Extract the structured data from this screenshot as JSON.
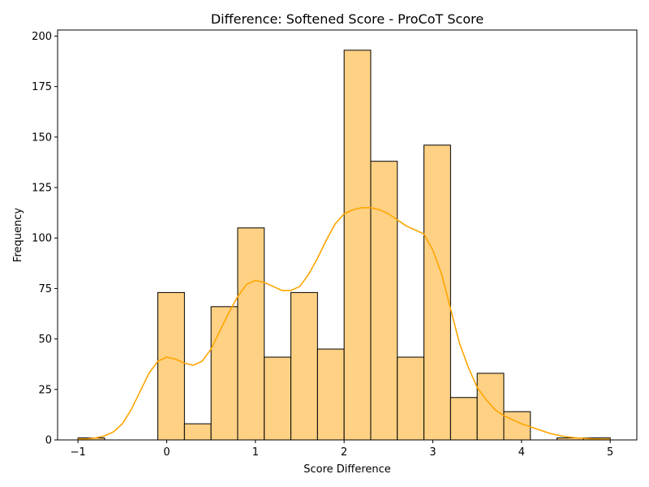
{
  "chart_data": {
    "type": "bar",
    "title": "Difference: Softened Score - ProCoT Score",
    "xlabel": "Score Difference",
    "ylabel": "Frequency",
    "xlim": [
      -1.23,
      5.3
    ],
    "ylim": [
      0,
      203
    ],
    "xticks": [
      -1,
      0,
      1,
      2,
      3,
      4,
      5
    ],
    "xtick_labels": [
      "−1",
      "0",
      "1",
      "2",
      "3",
      "4",
      "5"
    ],
    "yticks": [
      0,
      25,
      50,
      75,
      100,
      125,
      150,
      175,
      200
    ],
    "ytick_labels": [
      "0",
      "25",
      "50",
      "75",
      "100",
      "125",
      "150",
      "175",
      "200"
    ],
    "bins": [
      {
        "x0": -1.0,
        "x1": -0.7,
        "count": 1
      },
      {
        "x0": -0.7,
        "x1": -0.4,
        "count": 0
      },
      {
        "x0": -0.4,
        "x1": -0.1,
        "count": 0
      },
      {
        "x0": -0.1,
        "x1": 0.2,
        "count": 73
      },
      {
        "x0": 0.2,
        "x1": 0.5,
        "count": 8
      },
      {
        "x0": 0.5,
        "x1": 0.8,
        "count": 66
      },
      {
        "x0": 0.8,
        "x1": 1.1,
        "count": 105
      },
      {
        "x0": 1.1,
        "x1": 1.4,
        "count": 41
      },
      {
        "x0": 1.4,
        "x1": 1.7,
        "count": 73
      },
      {
        "x0": 1.7,
        "x1": 2.0,
        "count": 45
      },
      {
        "x0": 2.0,
        "x1": 2.3,
        "count": 193
      },
      {
        "x0": 2.3,
        "x1": 2.6,
        "count": 138
      },
      {
        "x0": 2.6,
        "x1": 2.9,
        "count": 41
      },
      {
        "x0": 2.9,
        "x1": 3.2,
        "count": 146
      },
      {
        "x0": 3.2,
        "x1": 3.5,
        "count": 21
      },
      {
        "x0": 3.5,
        "x1": 3.8,
        "count": 33
      },
      {
        "x0": 3.8,
        "x1": 4.1,
        "count": 14
      },
      {
        "x0": 4.1,
        "x1": 4.4,
        "count": 0
      },
      {
        "x0": 4.4,
        "x1": 4.7,
        "count": 1
      },
      {
        "x0": 4.7,
        "x1": 5.0,
        "count": 1
      }
    ],
    "kde": {
      "x": [
        -1.0,
        -0.9,
        -0.8,
        -0.7,
        -0.6,
        -0.5,
        -0.4,
        -0.3,
        -0.2,
        -0.1,
        0.0,
        0.1,
        0.2,
        0.3,
        0.4,
        0.5,
        0.6,
        0.7,
        0.8,
        0.9,
        1.0,
        1.1,
        1.2,
        1.3,
        1.4,
        1.5,
        1.6,
        1.7,
        1.8,
        1.9,
        2.0,
        2.1,
        2.2,
        2.3,
        2.4,
        2.5,
        2.6,
        2.7,
        2.8,
        2.9,
        3.0,
        3.1,
        3.2,
        3.3,
        3.4,
        3.5,
        3.6,
        3.7,
        3.8,
        3.9,
        4.0,
        4.1,
        4.2,
        4.3,
        4.4,
        4.5,
        4.6,
        4.7,
        4.8,
        4.9,
        5.0
      ],
      "y": [
        0.3,
        0.5,
        1.0,
        2.0,
        4.0,
        8.0,
        15.0,
        24.0,
        33.0,
        39.0,
        41.0,
        40.0,
        38.0,
        37.0,
        39.0,
        45.0,
        54.0,
        63.0,
        71.0,
        77.0,
        79.0,
        78.0,
        76.0,
        74.0,
        74.0,
        76.0,
        82.0,
        90.0,
        99.0,
        107.0,
        112.0,
        114.0,
        115.0,
        115.0,
        114.0,
        112.0,
        109.0,
        106.0,
        104.0,
        102.0,
        94.0,
        82.0,
        65.0,
        48.0,
        36.0,
        26.0,
        20.0,
        15.0,
        12.0,
        10.0,
        8.0,
        6.5,
        5.0,
        3.5,
        2.4,
        1.6,
        1.1,
        0.8,
        0.5,
        0.3,
        0.2
      ]
    },
    "colors": {
      "bar_fill": "#fed184",
      "bar_edge": "#000000",
      "kde_line": "#ffa500"
    },
    "grid": false,
    "legend": "none"
  }
}
